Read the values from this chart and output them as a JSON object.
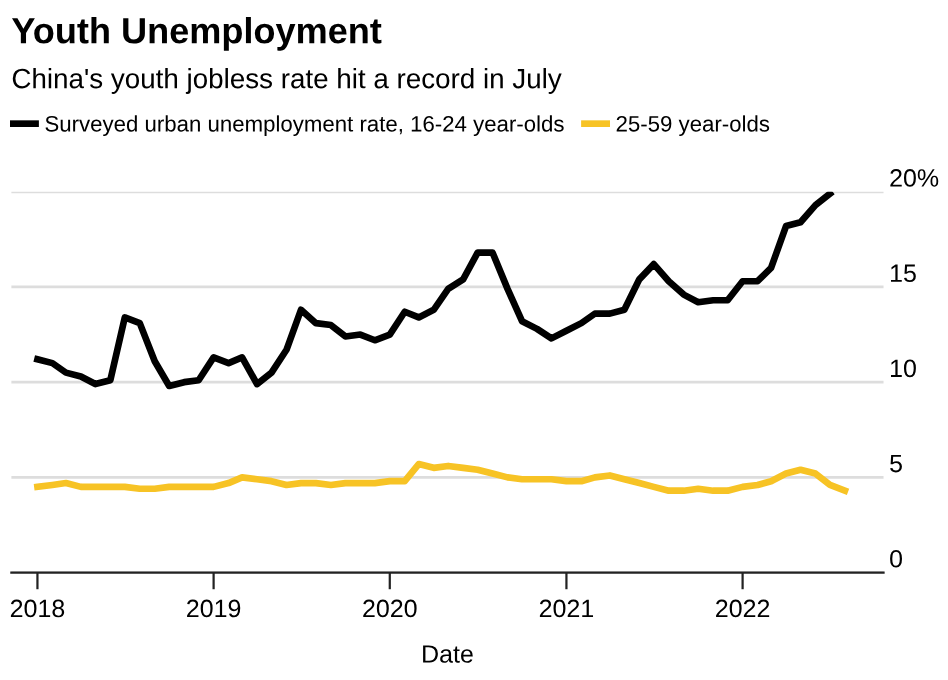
{
  "chart_data": {
    "type": "line",
    "title": "Youth Unemployment",
    "subtitle": "China's youth jobless rate hit a record in July",
    "xlabel": "Date",
    "x": [
      "2018-01",
      "2018-02",
      "2018-03",
      "2018-04",
      "2018-05",
      "2018-06",
      "2018-07",
      "2018-08",
      "2018-09",
      "2018-10",
      "2018-11",
      "2018-12",
      "2019-01",
      "2019-02",
      "2019-03",
      "2019-04",
      "2019-05",
      "2019-06",
      "2019-07",
      "2019-08",
      "2019-09",
      "2019-10",
      "2019-11",
      "2019-12",
      "2020-01",
      "2020-02",
      "2020-03",
      "2020-04",
      "2020-05",
      "2020-06",
      "2020-07",
      "2020-08",
      "2020-09",
      "2020-10",
      "2020-11",
      "2020-12",
      "2021-01",
      "2021-02",
      "2021-03",
      "2021-04",
      "2021-05",
      "2021-06",
      "2021-07",
      "2021-08",
      "2021-09",
      "2021-10",
      "2021-11",
      "2021-12",
      "2022-01",
      "2022-02",
      "2022-03",
      "2022-04",
      "2022-05",
      "2022-06",
      "2022-07",
      "2022-08"
    ],
    "series": [
      {
        "name": "Surveyed urban unemployment rate, 16-24 year-olds",
        "color": "#000000",
        "values": [
          11.2,
          11.0,
          10.5,
          10.3,
          9.9,
          10.1,
          13.4,
          13.1,
          11.1,
          9.8,
          10.0,
          10.1,
          11.3,
          11.0,
          11.3,
          9.9,
          10.5,
          11.7,
          13.8,
          13.1,
          13.0,
          12.4,
          12.5,
          12.2,
          12.5,
          13.7,
          13.4,
          13.8,
          14.9,
          15.4,
          16.8,
          16.8,
          14.9,
          13.2,
          12.8,
          12.3,
          12.7,
          13.1,
          13.6,
          13.6,
          13.8,
          15.4,
          16.2,
          15.3,
          14.6,
          14.2,
          14.3,
          14.3,
          15.3,
          15.3,
          16.0,
          18.2,
          18.4,
          19.3,
          19.9,
          null
        ]
      },
      {
        "name": "25-59 year-olds",
        "color": "#f7c325",
        "values": [
          4.5,
          4.6,
          4.7,
          4.5,
          4.5,
          4.5,
          4.5,
          4.4,
          4.4,
          4.5,
          4.5,
          4.5,
          4.5,
          4.7,
          5.0,
          4.9,
          4.8,
          4.6,
          4.7,
          4.7,
          4.6,
          4.7,
          4.7,
          4.7,
          4.8,
          4.8,
          5.7,
          5.5,
          5.6,
          5.5,
          5.4,
          5.2,
          5.0,
          4.9,
          4.9,
          4.9,
          4.8,
          4.8,
          5.0,
          5.1,
          4.9,
          4.7,
          4.5,
          4.3,
          4.3,
          4.4,
          4.3,
          4.3,
          4.5,
          4.6,
          4.8,
          5.2,
          5.4,
          5.2,
          4.6,
          4.3
        ]
      }
    ],
    "xlim": [
      "2017-11-08",
      "2022-10-20"
    ],
    "xticks": [
      {
        "value": "2018-01-01",
        "label": "2018"
      },
      {
        "value": "2019-01-01",
        "label": "2019"
      },
      {
        "value": "2020-01-01",
        "label": "2020"
      },
      {
        "value": "2021-01-01",
        "label": "2021"
      },
      {
        "value": "2022-01-01",
        "label": "2022"
      }
    ],
    "ylim": [
      0,
      20
    ],
    "yticks": [
      0,
      5,
      10,
      15,
      {
        "value": 20,
        "label": "20%"
      }
    ],
    "grid": "y",
    "legend": "top left",
    "marker": "none",
    "line_style": "solid"
  }
}
